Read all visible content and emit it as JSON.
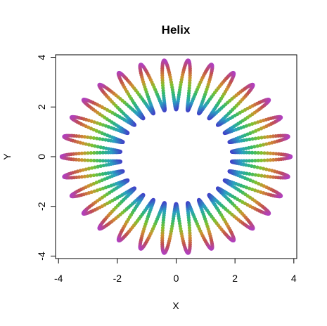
{
  "chart_data": {
    "type": "scatter",
    "title": "Helix",
    "xlabel": "X",
    "ylabel": "Y",
    "xlim": [
      -4.1,
      4.1
    ],
    "ylim": [
      -4.1,
      4.1
    ],
    "x_ticks": [
      -4,
      -2,
      0,
      2,
      4
    ],
    "y_ticks": [
      -4,
      -2,
      0,
      2,
      4
    ],
    "x_tick_labels": [
      "-4",
      "-2",
      "0",
      "2",
      "4"
    ],
    "y_tick_labels": [
      "-4",
      "-2",
      "0",
      "2",
      "4"
    ],
    "grid": false,
    "legend": "none",
    "curve": {
      "ring_center_radius": 2.9,
      "coil_amplitude": 1.0,
      "coils": 30,
      "points": 1800
    },
    "color_gradient": [
      "#4040c8",
      "#2aa0c0",
      "#30b870",
      "#80c030",
      "#d09030",
      "#c05050",
      "#b040c0"
    ],
    "colors": {
      "frame": "#000000",
      "background": "#ffffff"
    }
  }
}
